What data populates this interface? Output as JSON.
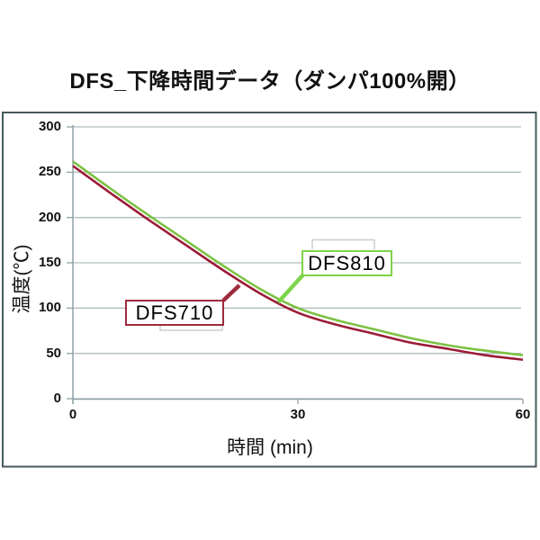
{
  "title": "DFS_下降時間データ（ダンパ100%開）",
  "chart_data": {
    "type": "line",
    "title": "DFS_下降時間データ（ダンパ100%開）",
    "xlabel": "時間 (min)",
    "ylabel": "温度(℃)",
    "xlim": [
      0,
      60
    ],
    "ylim": [
      0,
      300
    ],
    "x_ticks": [
      "0",
      "30",
      "60"
    ],
    "y_ticks": [
      "0",
      "50",
      "100",
      "150",
      "200",
      "250",
      "300"
    ],
    "grid": "horizontal-only",
    "legend": "callout-labels-on-plot",
    "series": [
      {
        "name": "DFS810",
        "color": "#7CC142",
        "callout_border": "#7ED34B",
        "x": [
          0,
          5,
          10,
          15,
          20,
          25,
          30,
          35,
          40,
          45,
          50,
          55,
          60
        ],
        "values": [
          262,
          232,
          203,
          175,
          147,
          121,
          100,
          87,
          77,
          67,
          59,
          53,
          48
        ]
      },
      {
        "name": "DFS710",
        "color": "#9C1B36",
        "callout_border": "#9E2B3C",
        "x": [
          0,
          5,
          10,
          15,
          20,
          25,
          30,
          35,
          40,
          45,
          50,
          55,
          60
        ],
        "values": [
          257,
          227,
          198,
          170,
          142,
          116,
          95,
          82,
          72,
          62,
          55,
          48,
          43
        ]
      }
    ]
  },
  "colors": {
    "background": "#ffffff",
    "chart_border": "#44595E",
    "gridline": "#B2BDC1",
    "axis": "#8FA1A7",
    "bracket": "#C8CDD1",
    "text": "#111111"
  }
}
